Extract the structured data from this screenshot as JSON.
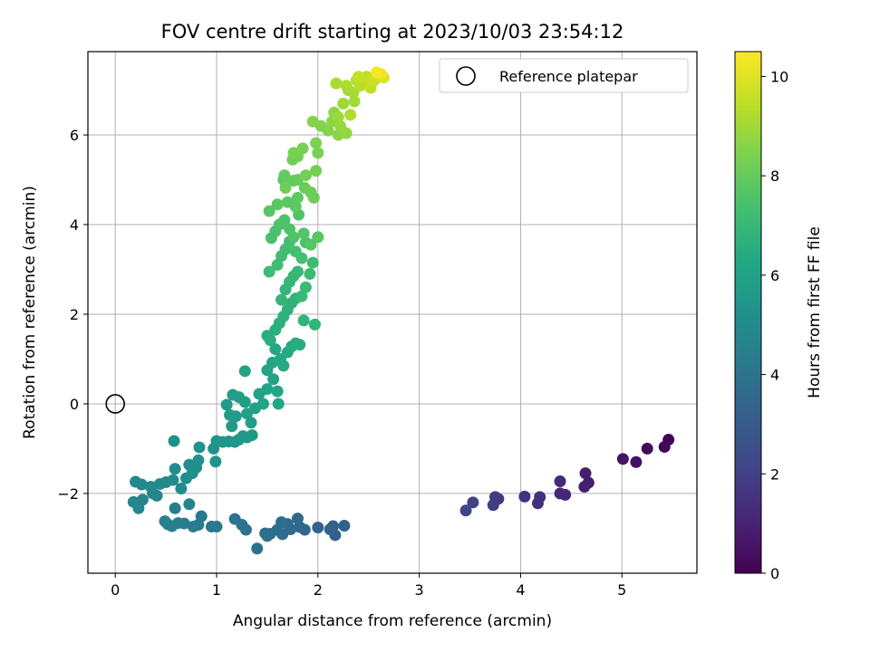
{
  "chart_data": {
    "type": "scatter",
    "title": "FOV centre drift starting at 2023/10/03 23:54:12",
    "xlabel": "Angular distance from reference (arcmin)",
    "ylabel": "Rotation from reference (arcmin)",
    "xlim": [
      -0.27,
      5.74
    ],
    "ylim": [
      -3.78,
      7.86
    ],
    "xticks": [
      0,
      1,
      2,
      3,
      4,
      5
    ],
    "yticks": [
      -2,
      0,
      2,
      4,
      6
    ],
    "grid": true,
    "legend": {
      "placement": "top-right",
      "entries": [
        "Reference platepar"
      ]
    },
    "reference_point": {
      "x": 0,
      "y": 0,
      "label": "Reference platepar"
    },
    "colorbar": {
      "label": "Hours from first FF file",
      "colormap": "viridis",
      "range": [
        0,
        10.5
      ],
      "ticks": [
        0,
        2,
        4,
        6,
        8,
        10
      ]
    },
    "points": [
      {
        "x": 5.46,
        "y": -0.8,
        "t": 0.1
      },
      {
        "x": 5.42,
        "y": -0.96,
        "t": 0.15
      },
      {
        "x": 5.25,
        "y": -1.0,
        "t": 0.3
      },
      {
        "x": 5.14,
        "y": -1.3,
        "t": 0.45
      },
      {
        "x": 5.01,
        "y": -1.23,
        "t": 0.5
      },
      {
        "x": 4.67,
        "y": -1.76,
        "t": 0.8
      },
      {
        "x": 4.64,
        "y": -1.55,
        "t": 0.85
      },
      {
        "x": 4.63,
        "y": -1.85,
        "t": 0.9
      },
      {
        "x": 4.44,
        "y": -2.03,
        "t": 1.1
      },
      {
        "x": 4.39,
        "y": -2.0,
        "t": 1.15
      },
      {
        "x": 4.39,
        "y": -1.73,
        "t": 1.2
      },
      {
        "x": 4.19,
        "y": -2.08,
        "t": 1.4
      },
      {
        "x": 4.17,
        "y": -2.22,
        "t": 1.45
      },
      {
        "x": 4.04,
        "y": -2.07,
        "t": 1.55
      },
      {
        "x": 3.78,
        "y": -2.12,
        "t": 1.8
      },
      {
        "x": 3.75,
        "y": -2.08,
        "t": 1.85
      },
      {
        "x": 3.73,
        "y": -2.26,
        "t": 1.9
      },
      {
        "x": 3.53,
        "y": -2.2,
        "t": 2.05
      },
      {
        "x": 3.46,
        "y": -2.38,
        "t": 2.15
      },
      {
        "x": 2.26,
        "y": -2.72,
        "t": 3.15
      },
      {
        "x": 2.17,
        "y": -2.93,
        "t": 3.2
      },
      {
        "x": 2.15,
        "y": -2.73,
        "t": 3.25
      },
      {
        "x": 2.12,
        "y": -2.8,
        "t": 3.3
      },
      {
        "x": 2.0,
        "y": -2.76,
        "t": 3.35
      },
      {
        "x": 1.87,
        "y": -2.81,
        "t": 3.45
      },
      {
        "x": 1.82,
        "y": -2.75,
        "t": 3.5
      },
      {
        "x": 1.8,
        "y": -2.56,
        "t": 3.55
      },
      {
        "x": 1.73,
        "y": -2.8,
        "t": 3.6
      },
      {
        "x": 1.7,
        "y": -2.68,
        "t": 3.65
      },
      {
        "x": 1.65,
        "y": -2.91,
        "t": 3.7
      },
      {
        "x": 1.64,
        "y": -2.64,
        "t": 3.72
      },
      {
        "x": 1.6,
        "y": -2.81,
        "t": 3.75
      },
      {
        "x": 1.53,
        "y": -2.9,
        "t": 3.8
      },
      {
        "x": 1.5,
        "y": -2.95,
        "t": 3.83
      },
      {
        "x": 1.48,
        "y": -2.89,
        "t": 3.86
      },
      {
        "x": 1.4,
        "y": -3.23,
        "t": 3.9
      },
      {
        "x": 1.29,
        "y": -2.81,
        "t": 3.95
      },
      {
        "x": 1.25,
        "y": -2.7,
        "t": 4.0
      },
      {
        "x": 1.18,
        "y": -2.57,
        "t": 4.05
      },
      {
        "x": 1.0,
        "y": -2.74,
        "t": 4.15
      },
      {
        "x": 0.95,
        "y": -2.74,
        "t": 4.2
      },
      {
        "x": 0.85,
        "y": -2.51,
        "t": 4.25
      },
      {
        "x": 0.82,
        "y": -2.7,
        "t": 4.3
      },
      {
        "x": 0.77,
        "y": -2.74,
        "t": 4.35
      },
      {
        "x": 0.68,
        "y": -2.67,
        "t": 4.4
      },
      {
        "x": 0.62,
        "y": -2.66,
        "t": 4.45
      },
      {
        "x": 0.59,
        "y": -2.33,
        "t": 4.5
      },
      {
        "x": 0.56,
        "y": -2.73,
        "t": 4.55
      },
      {
        "x": 0.52,
        "y": -2.69,
        "t": 4.6
      },
      {
        "x": 0.49,
        "y": -2.62,
        "t": 4.63
      },
      {
        "x": 0.73,
        "y": -2.24,
        "t": 4.66
      },
      {
        "x": 0.41,
        "y": -2.05,
        "t": 4.7
      },
      {
        "x": 0.37,
        "y": -2.0,
        "t": 4.72
      },
      {
        "x": 0.23,
        "y": -2.33,
        "t": 4.75
      },
      {
        "x": 0.18,
        "y": -2.19,
        "t": 4.78
      },
      {
        "x": 0.27,
        "y": -2.14,
        "t": 4.8
      },
      {
        "x": 0.26,
        "y": -1.8,
        "t": 4.83
      },
      {
        "x": 0.2,
        "y": -1.74,
        "t": 4.86
      },
      {
        "x": 0.35,
        "y": -1.85,
        "t": 4.9
      },
      {
        "x": 0.44,
        "y": -1.79,
        "t": 4.93
      },
      {
        "x": 0.5,
        "y": -1.75,
        "t": 4.96
      },
      {
        "x": 0.57,
        "y": -1.7,
        "t": 5.0
      },
      {
        "x": 0.59,
        "y": -1.45,
        "t": 5.03
      },
      {
        "x": 0.65,
        "y": -1.89,
        "t": 5.06
      },
      {
        "x": 0.7,
        "y": -1.66,
        "t": 5.1
      },
      {
        "x": 0.73,
        "y": -1.36,
        "t": 5.13
      },
      {
        "x": 0.76,
        "y": -1.55,
        "t": 5.16
      },
      {
        "x": 0.8,
        "y": -1.42,
        "t": 5.2
      },
      {
        "x": 0.82,
        "y": -1.26,
        "t": 5.23
      },
      {
        "x": 0.58,
        "y": -0.83,
        "t": 5.26
      },
      {
        "x": 0.83,
        "y": -0.97,
        "t": 5.3
      },
      {
        "x": 0.97,
        "y": -1.0,
        "t": 5.33
      },
      {
        "x": 0.99,
        "y": -1.29,
        "t": 5.36
      },
      {
        "x": 1.0,
        "y": -0.83,
        "t": 5.4
      },
      {
        "x": 1.06,
        "y": -0.85,
        "t": 5.43
      },
      {
        "x": 1.12,
        "y": -0.84,
        "t": 5.46
      },
      {
        "x": 1.18,
        "y": -0.85,
        "t": 5.5
      },
      {
        "x": 1.22,
        "y": -0.8,
        "t": 5.53
      },
      {
        "x": 1.26,
        "y": -0.72,
        "t": 5.56
      },
      {
        "x": 1.3,
        "y": -0.75,
        "t": 5.6
      },
      {
        "x": 1.35,
        "y": -0.7,
        "t": 5.63
      },
      {
        "x": 1.15,
        "y": -0.5,
        "t": 5.66
      },
      {
        "x": 1.19,
        "y": -0.28,
        "t": 5.7
      },
      {
        "x": 1.13,
        "y": -0.25,
        "t": 5.73
      },
      {
        "x": 1.1,
        "y": -0.02,
        "t": 5.76
      },
      {
        "x": 1.16,
        "y": 0.2,
        "t": 5.8
      },
      {
        "x": 1.22,
        "y": 0.15,
        "t": 5.83
      },
      {
        "x": 1.28,
        "y": 0.04,
        "t": 5.86
      },
      {
        "x": 1.3,
        "y": -0.22,
        "t": 5.9
      },
      {
        "x": 1.34,
        "y": -0.42,
        "t": 5.93
      },
      {
        "x": 1.38,
        "y": -0.1,
        "t": 5.96
      },
      {
        "x": 1.42,
        "y": 0.22,
        "t": 6.0
      },
      {
        "x": 1.46,
        "y": 0.0,
        "t": 6.03
      },
      {
        "x": 1.28,
        "y": 0.73,
        "t": 6.06
      },
      {
        "x": 1.5,
        "y": 0.33,
        "t": 6.1
      },
      {
        "x": 1.5,
        "y": 0.75,
        "t": 6.13
      },
      {
        "x": 1.56,
        "y": 0.55,
        "t": 6.16
      },
      {
        "x": 1.6,
        "y": 0.28,
        "t": 6.2
      },
      {
        "x": 1.61,
        "y": 0.0,
        "t": 6.23
      },
      {
        "x": 1.55,
        "y": 0.92,
        "t": 6.26
      },
      {
        "x": 1.58,
        "y": 1.22,
        "t": 6.3
      },
      {
        "x": 1.63,
        "y": 1.0,
        "t": 6.33
      },
      {
        "x": 1.66,
        "y": 0.85,
        "t": 6.36
      },
      {
        "x": 1.7,
        "y": 1.15,
        "t": 6.4
      },
      {
        "x": 1.74,
        "y": 1.28,
        "t": 6.43
      },
      {
        "x": 1.78,
        "y": 1.35,
        "t": 6.46
      },
      {
        "x": 1.82,
        "y": 1.32,
        "t": 6.5
      },
      {
        "x": 1.53,
        "y": 1.42,
        "t": 6.53
      },
      {
        "x": 1.5,
        "y": 1.52,
        "t": 6.56
      },
      {
        "x": 1.58,
        "y": 1.65,
        "t": 6.6
      },
      {
        "x": 1.62,
        "y": 1.8,
        "t": 6.63
      },
      {
        "x": 1.66,
        "y": 1.95,
        "t": 6.66
      },
      {
        "x": 1.7,
        "y": 2.1,
        "t": 6.7
      },
      {
        "x": 1.74,
        "y": 2.25,
        "t": 6.73
      },
      {
        "x": 1.78,
        "y": 2.35,
        "t": 6.76
      },
      {
        "x": 1.86,
        "y": 1.86,
        "t": 6.8
      },
      {
        "x": 1.97,
        "y": 1.77,
        "t": 6.83
      },
      {
        "x": 1.64,
        "y": 2.32,
        "t": 6.86
      },
      {
        "x": 1.68,
        "y": 2.55,
        "t": 6.9
      },
      {
        "x": 1.72,
        "y": 2.72,
        "t": 6.93
      },
      {
        "x": 1.76,
        "y": 2.85,
        "t": 6.96
      },
      {
        "x": 1.8,
        "y": 2.95,
        "t": 7.0
      },
      {
        "x": 1.84,
        "y": 2.4,
        "t": 7.03
      },
      {
        "x": 1.88,
        "y": 2.6,
        "t": 7.06
      },
      {
        "x": 1.92,
        "y": 2.9,
        "t": 7.1
      },
      {
        "x": 1.95,
        "y": 3.15,
        "t": 7.13
      },
      {
        "x": 1.52,
        "y": 2.95,
        "t": 7.16
      },
      {
        "x": 1.6,
        "y": 3.1,
        "t": 7.2
      },
      {
        "x": 1.64,
        "y": 3.3,
        "t": 7.23
      },
      {
        "x": 1.68,
        "y": 3.45,
        "t": 7.26
      },
      {
        "x": 1.72,
        "y": 3.62,
        "t": 7.3
      },
      {
        "x": 1.78,
        "y": 3.4,
        "t": 7.33
      },
      {
        "x": 1.84,
        "y": 3.25,
        "t": 7.36
      },
      {
        "x": 1.88,
        "y": 3.6,
        "t": 7.4
      },
      {
        "x": 1.54,
        "y": 3.7,
        "t": 7.43
      },
      {
        "x": 1.58,
        "y": 3.85,
        "t": 7.46
      },
      {
        "x": 1.62,
        "y": 4.0,
        "t": 7.5
      },
      {
        "x": 1.67,
        "y": 4.1,
        "t": 7.53
      },
      {
        "x": 1.72,
        "y": 3.9,
        "t": 7.56
      },
      {
        "x": 1.76,
        "y": 3.72,
        "t": 7.6
      },
      {
        "x": 1.81,
        "y": 4.22,
        "t": 7.63
      },
      {
        "x": 1.86,
        "y": 3.8,
        "t": 7.66
      },
      {
        "x": 1.93,
        "y": 3.55,
        "t": 7.7
      },
      {
        "x": 2.0,
        "y": 3.72,
        "t": 7.73
      },
      {
        "x": 1.52,
        "y": 4.3,
        "t": 7.76
      },
      {
        "x": 1.6,
        "y": 4.45,
        "t": 7.8
      },
      {
        "x": 1.7,
        "y": 4.5,
        "t": 7.83
      },
      {
        "x": 1.78,
        "y": 4.4,
        "t": 7.86
      },
      {
        "x": 1.8,
        "y": 4.6,
        "t": 7.9
      },
      {
        "x": 1.76,
        "y": 4.98,
        "t": 7.93
      },
      {
        "x": 1.66,
        "y": 5.0,
        "t": 7.96
      },
      {
        "x": 1.67,
        "y": 5.1,
        "t": 8.0
      },
      {
        "x": 1.8,
        "y": 5.0,
        "t": 8.03
      },
      {
        "x": 1.87,
        "y": 4.82,
        "t": 8.06
      },
      {
        "x": 1.93,
        "y": 4.72,
        "t": 8.1
      },
      {
        "x": 1.96,
        "y": 4.6,
        "t": 8.13
      },
      {
        "x": 1.68,
        "y": 4.82,
        "t": 8.16
      },
      {
        "x": 1.75,
        "y": 5.45,
        "t": 8.2
      },
      {
        "x": 1.8,
        "y": 5.52,
        "t": 8.23
      },
      {
        "x": 1.88,
        "y": 5.1,
        "t": 8.26
      },
      {
        "x": 1.98,
        "y": 5.2,
        "t": 8.3
      },
      {
        "x": 1.85,
        "y": 5.7,
        "t": 8.33
      },
      {
        "x": 1.76,
        "y": 5.6,
        "t": 8.36
      },
      {
        "x": 2.0,
        "y": 5.6,
        "t": 8.4
      },
      {
        "x": 1.98,
        "y": 5.82,
        "t": 8.45
      },
      {
        "x": 2.03,
        "y": 6.2,
        "t": 8.5
      },
      {
        "x": 1.95,
        "y": 6.3,
        "t": 8.55
      },
      {
        "x": 2.1,
        "y": 6.1,
        "t": 8.6
      },
      {
        "x": 2.14,
        "y": 6.3,
        "t": 8.65
      },
      {
        "x": 2.2,
        "y": 6.0,
        "t": 8.7
      },
      {
        "x": 2.16,
        "y": 6.5,
        "t": 8.75
      },
      {
        "x": 2.28,
        "y": 6.04,
        "t": 8.8
      },
      {
        "x": 2.22,
        "y": 6.2,
        "t": 8.85
      },
      {
        "x": 2.2,
        "y": 6.4,
        "t": 8.9
      },
      {
        "x": 2.25,
        "y": 6.7,
        "t": 8.95
      },
      {
        "x": 2.3,
        "y": 7.0,
        "t": 9.0
      },
      {
        "x": 2.36,
        "y": 6.75,
        "t": 9.05
      },
      {
        "x": 2.35,
        "y": 6.95,
        "t": 9.1
      },
      {
        "x": 2.18,
        "y": 7.15,
        "t": 9.15
      },
      {
        "x": 2.28,
        "y": 7.1,
        "t": 9.2
      },
      {
        "x": 2.32,
        "y": 6.45,
        "t": 9.25
      },
      {
        "x": 2.38,
        "y": 7.22,
        "t": 9.3
      },
      {
        "x": 2.42,
        "y": 7.1,
        "t": 9.35
      },
      {
        "x": 2.46,
        "y": 7.18,
        "t": 9.4
      },
      {
        "x": 2.48,
        "y": 7.3,
        "t": 9.45
      },
      {
        "x": 2.52,
        "y": 7.05,
        "t": 9.5
      },
      {
        "x": 2.5,
        "y": 7.24,
        "t": 9.55
      },
      {
        "x": 2.4,
        "y": 7.3,
        "t": 9.6
      },
      {
        "x": 2.56,
        "y": 7.22,
        "t": 9.7
      },
      {
        "x": 2.6,
        "y": 7.3,
        "t": 9.8
      },
      {
        "x": 2.65,
        "y": 7.28,
        "t": 10.0
      },
      {
        "x": 2.62,
        "y": 7.36,
        "t": 10.2
      },
      {
        "x": 2.58,
        "y": 7.4,
        "t": 10.4
      }
    ]
  }
}
